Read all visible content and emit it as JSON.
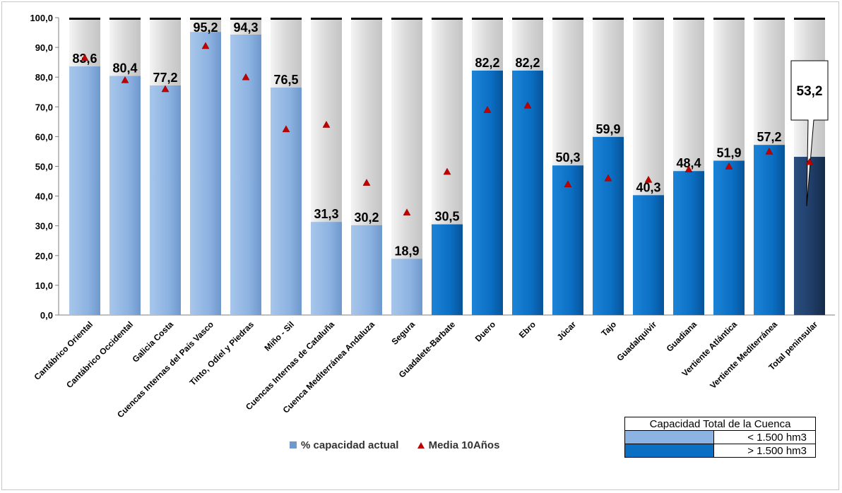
{
  "colors": {
    "small_basin": "#8db3e2",
    "large_basin": "#0b6fc3",
    "total": "#1f3c66",
    "track": "#dcdcdc",
    "marker": "#c00000"
  },
  "chart_data": {
    "type": "bar",
    "ylim": [
      0,
      100
    ],
    "yticks": [
      "0,0",
      "10,0",
      "20,0",
      "30,0",
      "40,0",
      "50,0",
      "60,0",
      "70,0",
      "80,0",
      "90,0",
      "100,0"
    ],
    "categories": [
      "Cantábrico Oriental",
      "Cantábrico Occidental",
      "Galicia Costa",
      "Cuencas Internas del País Vasco",
      "Tinto, Odiel y Piedras",
      "Miño - Sil",
      "Cuencas Internas de Cataluña",
      "Cuenca Mediterránea Andaluza",
      "Segura",
      "Guadalete-Barbate",
      "Duero",
      "Ebro",
      "Júcar",
      "Tajo",
      "Guadalquivir",
      "Guadiana",
      "Vertiente Atlántica",
      "Vertiente Mediterránea",
      "Total peninsular"
    ],
    "series": [
      {
        "name": "% capacidad actual",
        "values": [
          83.6,
          80.4,
          77.2,
          95.2,
          94.3,
          76.5,
          31.3,
          30.2,
          18.9,
          30.5,
          82.2,
          82.2,
          50.3,
          59.9,
          40.3,
          48.4,
          51.9,
          57.2,
          53.2
        ],
        "labels": [
          "83,6",
          "80,4",
          "77,2",
          "95,2",
          "94,3",
          "76,5",
          "31,3",
          "30,2",
          "18,9",
          "30,5",
          "82,2",
          "82,2",
          "50,3",
          "59,9",
          "40,3",
          "48,4",
          "51,9",
          "57,2",
          "53,2"
        ],
        "capacity_group": [
          "small",
          "small",
          "small",
          "small",
          "small",
          "small",
          "small",
          "small",
          "small",
          "large",
          "large",
          "large",
          "large",
          "large",
          "large",
          "large",
          "large",
          "large",
          "total"
        ]
      },
      {
        "name": "Media 10Años",
        "values": [
          86.5,
          79,
          76,
          90.5,
          80,
          62.5,
          64,
          44.5,
          34.5,
          48.2,
          69,
          70.5,
          44,
          46,
          45.5,
          49,
          50,
          55,
          51.5
        ]
      }
    ],
    "legend": {
      "position": "bottom",
      "items": [
        "% capacidad actual",
        "Media 10Años"
      ]
    },
    "capacity_legend": {
      "title": "Capacidad Total de la Cuenca",
      "rows": [
        "< 1.500 hm3",
        "> 1.500 hm3"
      ]
    },
    "grid": false
  }
}
